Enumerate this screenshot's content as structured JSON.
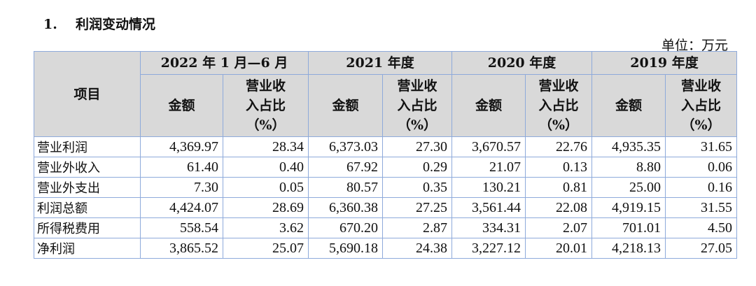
{
  "section": {
    "number": "1.",
    "title": "利润变动情况"
  },
  "unit": "单位：万元",
  "table": {
    "item_header": "项目",
    "periods": [
      "2022 年 1 月—6 月",
      "2021 年度",
      "2020 年度",
      "2019 年度"
    ],
    "amount_header": "金额",
    "ratio_header": [
      "营业收",
      "入占比",
      "（%）"
    ],
    "rows": [
      {
        "item": "营业利润",
        "values": [
          "4,369.97",
          "28.34",
          "6,373.03",
          "27.30",
          "3,670.57",
          "22.76",
          "4,935.35",
          "31.65"
        ]
      },
      {
        "item": "营业外收入",
        "values": [
          "61.40",
          "0.40",
          "67.92",
          "0.29",
          "21.07",
          "0.13",
          "8.80",
          "0.06"
        ]
      },
      {
        "item": "营业外支出",
        "values": [
          "7.30",
          "0.05",
          "80.57",
          "0.35",
          "130.21",
          "0.81",
          "25.00",
          "0.16"
        ]
      },
      {
        "item": "利润总额",
        "values": [
          "4,424.07",
          "28.69",
          "6,360.38",
          "27.25",
          "3,561.44",
          "22.08",
          "4,919.15",
          "31.55"
        ]
      },
      {
        "item": "所得税费用",
        "values": [
          "558.54",
          "3.62",
          "670.20",
          "2.87",
          "334.31",
          "2.07",
          "701.01",
          "4.50"
        ]
      },
      {
        "item": "净利润",
        "values": [
          "3,865.52",
          "25.07",
          "5,690.18",
          "24.38",
          "3,227.12",
          "20.01",
          "4,218.13",
          "27.05"
        ]
      }
    ]
  }
}
